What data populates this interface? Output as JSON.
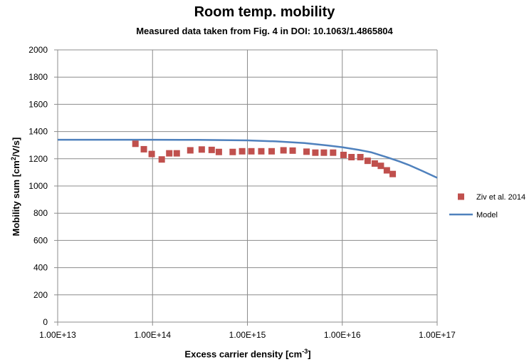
{
  "chart_data": {
    "type": "scatter",
    "title": "Room temp. mobility",
    "subtitle": "Measured data taken from Fig. 4 in DOI: 10.1063/1.4865804",
    "xlabel_main": "Excess carrier density [cm",
    "xlabel_sup": "-3",
    "xlabel_end": "]",
    "ylabel_main": "Mobility sum [cm",
    "ylabel_sup": "2",
    "ylabel_end": "/V/s]",
    "x_scale": "log",
    "xlim": [
      10000000000000.0,
      1e+17
    ],
    "ylim": [
      0,
      2000
    ],
    "x_ticks": [
      10000000000000.0,
      100000000000000.0,
      1000000000000000.0,
      1e+16,
      1e+17
    ],
    "x_tick_labels": [
      "1.00E+13",
      "1.00E+14",
      "1.00E+15",
      "1.00E+16",
      "1.00E+17"
    ],
    "y_ticks": [
      0,
      200,
      400,
      600,
      800,
      1000,
      1200,
      1400,
      1600,
      1800,
      2000
    ],
    "grid": true,
    "legend_position": "right",
    "series": [
      {
        "name": "Ziv et al. 2014",
        "kind": "markers",
        "marker": "square",
        "color": "#C0504D",
        "x": [
          66000000000000.0,
          81000000000000.0,
          98000000000000.0,
          125000000000000.0,
          150000000000000.0,
          180000000000000.0,
          250000000000000.0,
          330000000000000.0,
          420000000000000.0,
          500000000000000.0,
          700000000000000.0,
          880000000000000.0,
          1100000000000000.0,
          1400000000000000.0,
          1800000000000000.0,
          2400000000000000.0,
          3000000000000000.0,
          4200000000000000.0,
          5200000000000000.0,
          6400000000000000.0,
          8000000000000000.0,
          1.03e+16,
          1.25e+16,
          1.55e+16,
          1.85e+16,
          2.2e+16,
          2.55e+16,
          2.95e+16,
          3.4e+16
        ],
        "y": [
          1310,
          1270,
          1235,
          1195,
          1240,
          1240,
          1262,
          1268,
          1265,
          1250,
          1250,
          1255,
          1255,
          1255,
          1255,
          1262,
          1260,
          1252,
          1245,
          1245,
          1245,
          1228,
          1212,
          1212,
          1185,
          1165,
          1148,
          1115,
          1088
        ]
      },
      {
        "name": "Model",
        "kind": "line",
        "color": "#4F81BD",
        "x": [
          10000000000000.0,
          30000000000000.0,
          100000000000000.0,
          300000000000000.0,
          1000000000000000.0,
          2000000000000000.0,
          4000000000000000.0,
          7000000000000000.0,
          1e+16,
          1.5e+16,
          2e+16,
          3e+16,
          4e+16,
          5e+16,
          7e+16,
          1e+17
        ],
        "y": [
          1340,
          1340,
          1340,
          1339,
          1335,
          1328,
          1315,
          1298,
          1285,
          1265,
          1248,
          1210,
          1180,
          1155,
          1110,
          1060
        ]
      }
    ]
  }
}
